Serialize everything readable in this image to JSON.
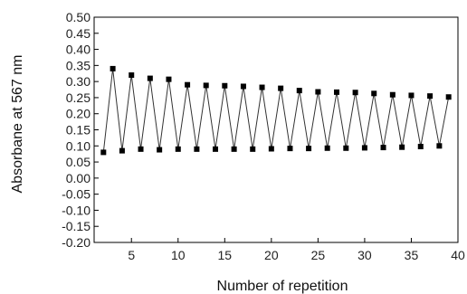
{
  "chart_data": {
    "type": "line",
    "title": "",
    "xlabel": "Number of repetition",
    "ylabel": "Absorbane at 567 nm",
    "xlim": [
      1,
      40
    ],
    "ylim": [
      -0.2,
      0.5
    ],
    "xticks": [
      5,
      10,
      15,
      20,
      25,
      30,
      35,
      40
    ],
    "yticks": [
      -0.2,
      -0.15,
      -0.1,
      -0.05,
      0.0,
      0.05,
      0.1,
      0.15,
      0.2,
      0.25,
      0.3,
      0.35,
      0.4,
      0.45,
      0.5
    ],
    "xtick_labels": [
      "5",
      "10",
      "15",
      "20",
      "25",
      "30",
      "35",
      "40"
    ],
    "ytick_labels": [
      "-0.20",
      "-0.15",
      "-0.10",
      "-0.05",
      "0.00",
      "0.05",
      "0.10",
      "0.15",
      "0.20",
      "0.25",
      "0.30",
      "0.35",
      "0.40",
      "0.45",
      "0.50"
    ],
    "grid": false,
    "marker": "square",
    "line_color": "#333333",
    "marker_color": "#000000",
    "series": [
      {
        "x": [
          2,
          3,
          4,
          5,
          6,
          7,
          8,
          9,
          10,
          11,
          12,
          13,
          14,
          15,
          16,
          17,
          18,
          19,
          20,
          21,
          22,
          23,
          24,
          25,
          26,
          27,
          28,
          29,
          30,
          31,
          32,
          33,
          34,
          35,
          36,
          37,
          38,
          39
        ],
        "y": [
          0.08,
          0.34,
          0.085,
          0.32,
          0.09,
          0.31,
          0.088,
          0.307,
          0.09,
          0.29,
          0.09,
          0.288,
          0.09,
          0.287,
          0.09,
          0.285,
          0.09,
          0.282,
          0.091,
          0.279,
          0.092,
          0.272,
          0.092,
          0.268,
          0.093,
          0.267,
          0.093,
          0.266,
          0.094,
          0.263,
          0.095,
          0.259,
          0.096,
          0.257,
          0.098,
          0.255,
          0.1,
          0.252
        ]
      }
    ]
  }
}
